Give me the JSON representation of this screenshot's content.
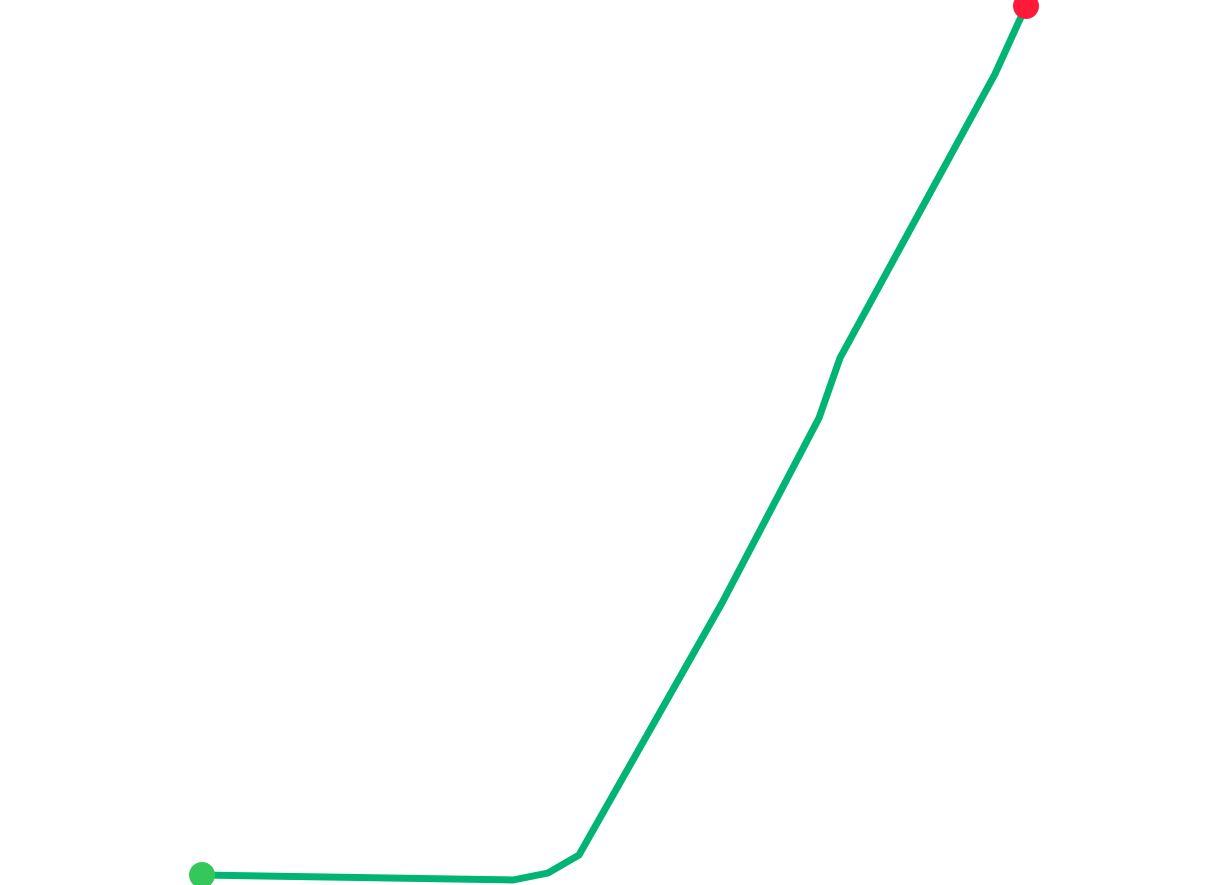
{
  "map": {
    "route": {
      "color": "#00b574"
    },
    "start_marker": {
      "icon": "start-dot-icon",
      "color": "#34c759"
    },
    "end_marker": {
      "icon": "end-dot-icon",
      "color": "#ff1a3a"
    }
  }
}
